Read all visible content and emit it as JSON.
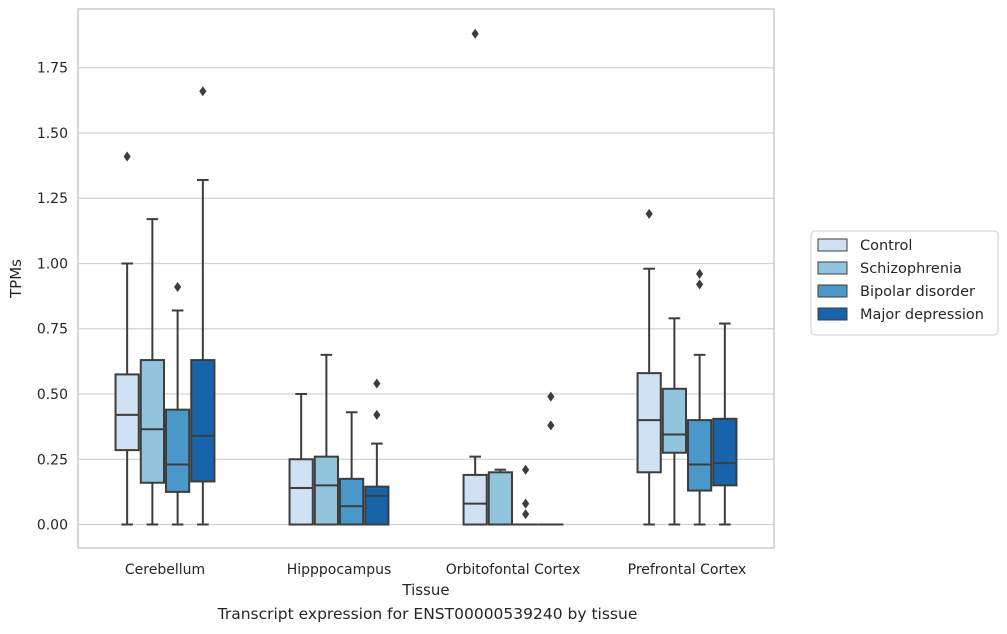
{
  "caption": "Transcript expression for ENST00000539240 by tissue",
  "chart_data": {
    "type": "box",
    "xlabel": "Tissue",
    "ylabel": "TPMs",
    "ylim": [
      -0.09,
      1.975
    ],
    "yticks": [
      0.0,
      0.25,
      0.5,
      0.75,
      1.0,
      1.25,
      1.5,
      1.75
    ],
    "ytick_labels": [
      "0.00",
      "0.25",
      "0.50",
      "0.75",
      "1.00",
      "1.25",
      "1.50",
      "1.75"
    ],
    "grid": "y",
    "legend_position": "right",
    "categories": [
      "Cerebellum",
      "Hipppocampus",
      "Orbitofontal Cortex",
      "Prefrontal Cortex"
    ],
    "series": [
      {
        "name": "Control",
        "color": "#cfe1f2",
        "boxes": [
          {
            "whislo": 0.0,
            "q1": 0.285,
            "med": 0.42,
            "q3": 0.575,
            "whishi": 1.0,
            "fliers": [
              1.41
            ]
          },
          {
            "whislo": 0.0,
            "q1": 0.0,
            "med": 0.14,
            "q3": 0.25,
            "whishi": 0.5,
            "fliers": []
          },
          {
            "whislo": 0.0,
            "q1": 0.0,
            "med": 0.08,
            "q3": 0.19,
            "whishi": 0.26,
            "fliers": [
              1.88
            ]
          },
          {
            "whislo": 0.0,
            "q1": 0.2,
            "med": 0.4,
            "q3": 0.58,
            "whishi": 0.98,
            "fliers": [
              1.19
            ]
          }
        ]
      },
      {
        "name": "Schizophrenia",
        "color": "#93c4de",
        "boxes": [
          {
            "whislo": 0.0,
            "q1": 0.16,
            "med": 0.365,
            "q3": 0.63,
            "whishi": 1.17,
            "fliers": []
          },
          {
            "whislo": 0.0,
            "q1": 0.0,
            "med": 0.15,
            "q3": 0.26,
            "whishi": 0.65,
            "fliers": []
          },
          {
            "whislo": 0.0,
            "q1": 0.0,
            "med": 0.0,
            "q3": 0.2,
            "whishi": 0.21,
            "fliers": []
          },
          {
            "whislo": 0.0,
            "q1": 0.275,
            "med": 0.345,
            "q3": 0.52,
            "whishi": 0.79,
            "fliers": []
          }
        ]
      },
      {
        "name": "Bipolar disorder",
        "color": "#4a98c9",
        "boxes": [
          {
            "whislo": 0.0,
            "q1": 0.125,
            "med": 0.23,
            "q3": 0.44,
            "whishi": 0.82,
            "fliers": [
              0.91
            ]
          },
          {
            "whislo": 0.0,
            "q1": 0.0,
            "med": 0.07,
            "q3": 0.175,
            "whishi": 0.43,
            "fliers": []
          },
          {
            "whislo": 0.0,
            "q1": 0.0,
            "med": 0.0,
            "q3": 0.0,
            "whishi": 0.0,
            "fliers": [
              0.21,
              0.08,
              0.04
            ]
          },
          {
            "whislo": 0.0,
            "q1": 0.13,
            "med": 0.23,
            "q3": 0.4,
            "whishi": 0.65,
            "fliers": [
              0.96,
              0.92
            ]
          }
        ]
      },
      {
        "name": "Major depression",
        "color": "#1764ab",
        "boxes": [
          {
            "whislo": 0.0,
            "q1": 0.165,
            "med": 0.34,
            "q3": 0.63,
            "whishi": 1.32,
            "fliers": [
              1.66
            ]
          },
          {
            "whislo": 0.0,
            "q1": 0.0,
            "med": 0.11,
            "q3": 0.145,
            "whishi": 0.31,
            "fliers": [
              0.54,
              0.42
            ]
          },
          {
            "whislo": 0.0,
            "q1": 0.0,
            "med": 0.0,
            "q3": 0.0,
            "whishi": 0.0,
            "fliers": [
              0.49,
              0.38
            ]
          },
          {
            "whislo": 0.0,
            "q1": 0.15,
            "med": 0.235,
            "q3": 0.405,
            "whishi": 0.77,
            "fliers": []
          }
        ]
      }
    ]
  }
}
